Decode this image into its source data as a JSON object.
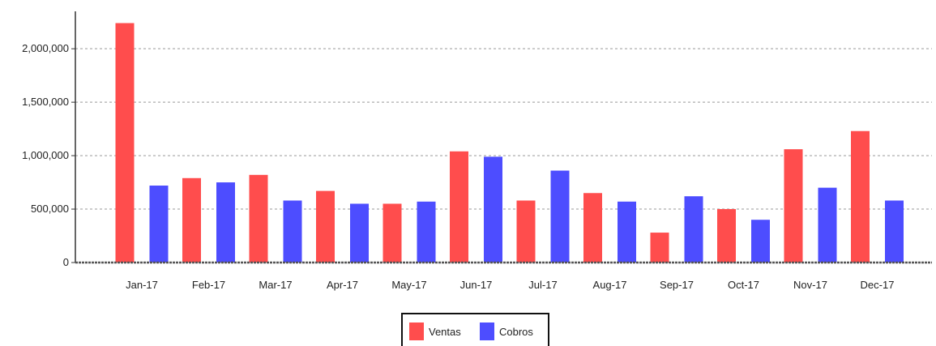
{
  "chart_data": {
    "type": "bar",
    "title": "",
    "categories": [
      "Jan-17",
      "Feb-17",
      "Mar-17",
      "Apr-17",
      "May-17",
      "Jun-17",
      "Jul-17",
      "Aug-17",
      "Sep-17",
      "Oct-17",
      "Nov-17",
      "Dec-17"
    ],
    "series": [
      {
        "name": "Ventas",
        "color": "#ff4d4d",
        "values": [
          2240000,
          790000,
          820000,
          670000,
          550000,
          1040000,
          580000,
          650000,
          280000,
          500000,
          1060000,
          1230000
        ]
      },
      {
        "name": "Cobros",
        "color": "#4d4dff",
        "values": [
          720000,
          750000,
          580000,
          550000,
          570000,
          990000,
          860000,
          570000,
          620000,
          400000,
          700000,
          580000
        ]
      }
    ],
    "y_ticks": [
      0,
      500000,
      1000000,
      1500000,
      2000000
    ],
    "y_tick_labels": [
      "0",
      "500,000",
      "1,000,000",
      "1,500,000",
      "2,000,000"
    ],
    "ylim": [
      0,
      2350000
    ],
    "xlabel": "",
    "ylabel": "",
    "grid": true,
    "legend_position": "bottom-center"
  }
}
